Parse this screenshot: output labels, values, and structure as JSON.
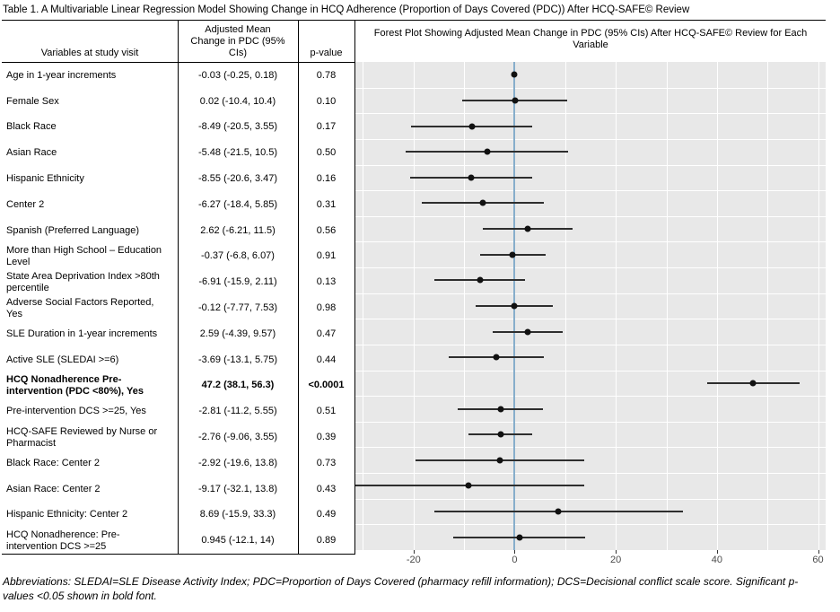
{
  "page": {
    "title": "Table 1. A Multivariable Linear Regression Model Showing Change in HCQ Adherence (Proportion of Days Covered (PDC)) After HCQ-SAFE© Review",
    "footnote": "Abbreviations: SLEDAI=SLE Disease Activity Index; PDC=Proportion of Days Covered (pharmacy refill information); DCS=Decisional conflict scale score. Significant p-values <0.05 shown in bold font."
  },
  "table": {
    "headers": {
      "variables": "Variables at study visit",
      "estimate": "Adjusted Mean Change in PDC (95% CIs)",
      "p_value": "p-value",
      "forest": "Forest Plot Showing Adjusted Mean Change in PDC (95% CIs) After HCQ-SAFE© Review for Each Variable"
    },
    "rows": [
      {
        "label": "Age in 1-year increments",
        "estimate": "-0.03 (-0.25, 0.18)",
        "p": "0.78",
        "bold": false
      },
      {
        "label": "Female Sex",
        "estimate": "0.02 (-10.4, 10.4)",
        "p": "0.10",
        "bold": false
      },
      {
        "label": "Black Race",
        "estimate": "-8.49 (-20.5, 3.55)",
        "p": "0.17",
        "bold": false
      },
      {
        "label": "Asian Race",
        "estimate": "-5.48 (-21.5, 10.5)",
        "p": "0.50",
        "bold": false
      },
      {
        "label": "Hispanic Ethnicity",
        "estimate": "-8.55 (-20.6, 3.47)",
        "p": "0.16",
        "bold": false
      },
      {
        "label": "Center 2",
        "estimate": "-6.27 (-18.4, 5.85)",
        "p": "0.31",
        "bold": false
      },
      {
        "label": "Spanish (Preferred Language)",
        "estimate": "2.62 (-6.21, 11.5)",
        "p": "0.56",
        "bold": false
      },
      {
        "label": "More than High School – Education Level",
        "estimate": "-0.37 (-6.8, 6.07)",
        "p": "0.91",
        "bold": false
      },
      {
        "label": "State Area Deprivation Index >80th percentile",
        "estimate": "-6.91 (-15.9, 2.11)",
        "p": "0.13",
        "bold": false
      },
      {
        "label": "Adverse Social Factors Reported, Yes",
        "estimate": "-0.12 (-7.77, 7.53)",
        "p": "0.98",
        "bold": false
      },
      {
        "label": "SLE Duration in 1-year increments",
        "estimate": "2.59 (-4.39, 9.57)",
        "p": "0.47",
        "bold": false
      },
      {
        "label": "Active SLE (SLEDAI >=6)",
        "estimate": "-3.69 (-13.1, 5.75)",
        "p": "0.44",
        "bold": false
      },
      {
        "label": "HCQ Nonadherence Pre-intervention (PDC <80%), Yes",
        "estimate": "47.2 (38.1, 56.3)",
        "p": "<0.0001",
        "bold": true
      },
      {
        "label": "Pre-intervention DCS >=25, Yes",
        "estimate": "-2.81 (-11.2, 5.55)",
        "p": "0.51",
        "bold": false
      },
      {
        "label": "HCQ-SAFE Reviewed by Nurse or Pharmacist",
        "estimate": "-2.76 (-9.06, 3.55)",
        "p": "0.39",
        "bold": false
      },
      {
        "label": "Black Race: Center 2",
        "estimate": "-2.92 (-19.6, 13.8)",
        "p": "0.73",
        "bold": false
      },
      {
        "label": "Asian Race: Center 2",
        "estimate": "-9.17 (-32.1, 13.8)",
        "p": "0.43",
        "bold": false
      },
      {
        "label": "Hispanic Ethnicity: Center 2",
        "estimate": "8.69 (-15.9, 33.3)",
        "p": "0.49",
        "bold": false
      },
      {
        "label": "HCQ Nonadherence: Pre-intervention DCS >=25",
        "estimate": "0.945 (-12.1, 14)",
        "p": "0.89",
        "bold": false
      }
    ]
  },
  "chart_data": {
    "type": "scatter",
    "subtype": "forest-plot-with-error-bars",
    "title": "Forest Plot Showing Adjusted Mean Change in PDC (95% CIs) After HCQ-SAFE© Review for Each Variable",
    "categories": [
      "Age in 1-year increments",
      "Female Sex",
      "Black Race",
      "Asian Race",
      "Hispanic Ethnicity",
      "Center 2",
      "Spanish (Preferred Language)",
      "More than High School – Education Level",
      "State Area Deprivation Index >80th percentile",
      "Adverse Social Factors Reported, Yes",
      "SLE Duration in 1-year increments",
      "Active SLE (SLEDAI >=6)",
      "HCQ Nonadherence Pre-intervention (PDC <80%), Yes",
      "Pre-intervention DCS >=25, Yes",
      "HCQ-SAFE Reviewed by Nurse or Pharmacist",
      "Black Race: Center 2",
      "Asian Race: Center 2",
      "Hispanic Ethnicity: Center 2",
      "HCQ Nonadherence: Pre-intervention DCS >=25"
    ],
    "series": [
      {
        "name": "Adjusted Mean Change in PDC",
        "values": [
          -0.03,
          0.02,
          -8.49,
          -5.48,
          -8.55,
          -6.27,
          2.62,
          -0.37,
          -6.91,
          -0.12,
          2.59,
          -3.69,
          47.2,
          -2.81,
          -2.76,
          -2.92,
          -9.17,
          8.69,
          0.945
        ]
      },
      {
        "name": "ci_lower",
        "values": [
          -0.25,
          -10.4,
          -20.5,
          -21.5,
          -20.6,
          -18.4,
          -6.21,
          -6.8,
          -15.9,
          -7.77,
          -4.39,
          -13.1,
          38.1,
          -11.2,
          -9.06,
          -19.6,
          -32.1,
          -15.9,
          -12.1
        ]
      },
      {
        "name": "ci_upper",
        "values": [
          0.18,
          10.4,
          3.55,
          10.5,
          3.47,
          5.85,
          11.5,
          6.07,
          2.11,
          7.53,
          9.57,
          5.75,
          56.3,
          5.55,
          3.55,
          13.8,
          13.8,
          33.3,
          14
        ]
      }
    ],
    "xlabel": "",
    "ylabel": "",
    "xlim": [
      -31.5,
      61.5
    ],
    "xticks": [
      -20,
      0,
      20,
      40,
      60
    ],
    "gridline_step": 10,
    "zero_reference_line": 0,
    "legend_position": "none",
    "colors": {
      "panel_bg": "#E8E8E8",
      "gridlines": "#FFFFFF",
      "zero_line": "#87AECB",
      "point": "#111111",
      "ci_bar": "#2E2E2E"
    }
  }
}
